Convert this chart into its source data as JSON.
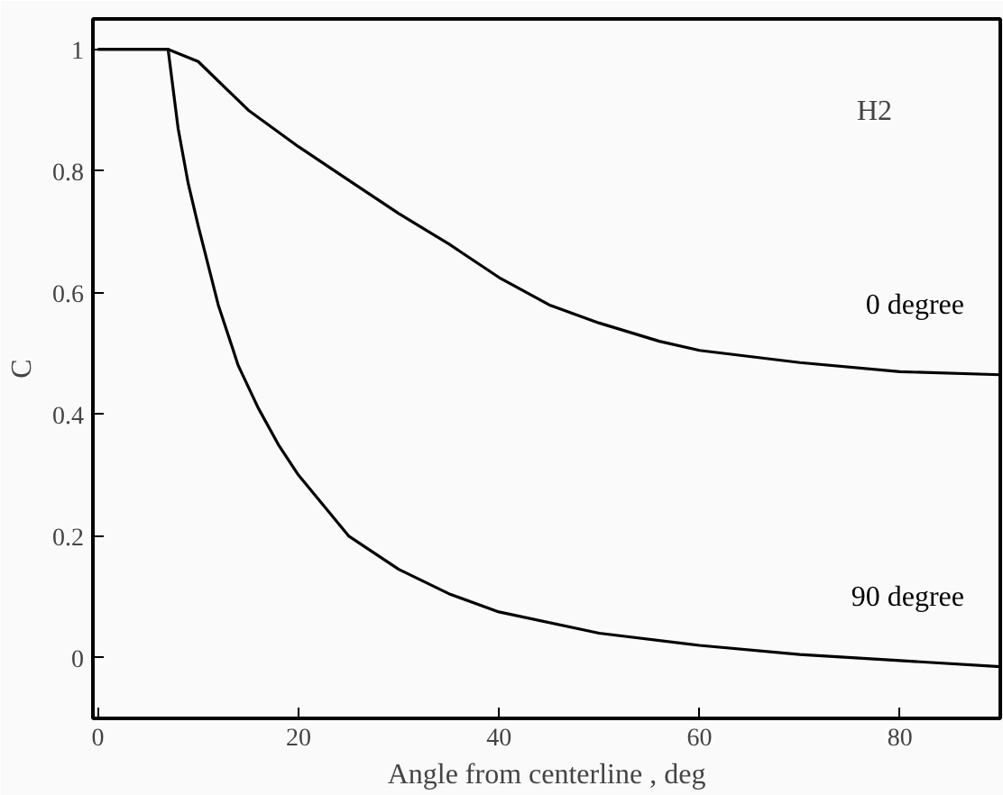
{
  "chart_data": {
    "type": "line",
    "xlabel": "Angle from centerline , deg",
    "ylabel": "C",
    "annotations": [
      "H2"
    ],
    "xlim": [
      -0.5,
      90
    ],
    "ylim": [
      -0.1,
      1.05
    ],
    "xticks": [
      0,
      20,
      40,
      60,
      80
    ],
    "yticks": [
      0,
      0.2,
      0.4,
      0.6,
      0.8,
      1
    ],
    "grid": false,
    "legend": false,
    "line_style": "solid",
    "marker": "none",
    "series": [
      {
        "name": "0 degree",
        "color": "#000000",
        "x": [
          0,
          7,
          10,
          15,
          20,
          25,
          30,
          35,
          40,
          45,
          50,
          56,
          60,
          70,
          80,
          90
        ],
        "values": [
          1,
          1,
          0.98,
          0.9,
          0.84,
          0.785,
          0.73,
          0.68,
          0.625,
          0.58,
          0.55,
          0.52,
          0.505,
          0.485,
          0.47,
          0.465
        ]
      },
      {
        "name": "90 degree",
        "color": "#000000",
        "x": [
          0,
          7,
          8,
          9,
          10,
          12,
          14,
          16,
          18,
          20,
          25,
          30,
          35,
          40,
          50,
          60,
          70,
          80,
          90
        ],
        "values": [
          1,
          1,
          0.87,
          0.78,
          0.71,
          0.58,
          0.48,
          0.41,
          0.35,
          0.3,
          0.2,
          0.145,
          0.105,
          0.075,
          0.04,
          0.02,
          0.005,
          -0.005,
          -0.015
        ]
      }
    ]
  }
}
